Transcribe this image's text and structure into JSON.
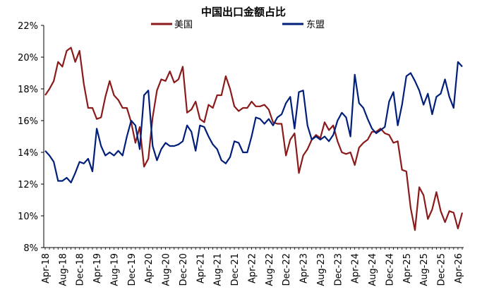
{
  "chart_data": {
    "type": "line",
    "title": "中国出口金额占比",
    "xlabel": "",
    "ylabel": "",
    "ylim": [
      8,
      22
    ],
    "yticks": [
      "8%",
      "10%",
      "12%",
      "14%",
      "16%",
      "18%",
      "20%",
      "22%"
    ],
    "ytick_values": [
      8,
      10,
      12,
      14,
      16,
      18,
      20,
      22
    ],
    "start": "Apr-18",
    "xticks": [
      "Apr-18",
      "Aug-18",
      "Dec-18",
      "Apr-19",
      "Aug-19",
      "Dec-19",
      "Apr-20",
      "Aug-20",
      "Dec-20",
      "Apr-21",
      "Aug-21",
      "Dec-21",
      "Apr-22",
      "Aug-22",
      "Dec-22",
      "Apr-23",
      "Aug-23",
      "Dec-23",
      "Apr-24",
      "Aug-24",
      "Dec-24",
      "Apr-25",
      "Aug-25",
      "Dec-25",
      "Apr-26"
    ],
    "grid": false,
    "legend_position": "top",
    "series": [
      {
        "name": "美国",
        "color": "#8b1a1a",
        "values": [
          17.6,
          18.0,
          18.5,
          19.7,
          19.4,
          20.4,
          20.6,
          19.7,
          20.4,
          18.3,
          16.8,
          16.8,
          16.1,
          16.2,
          17.5,
          18.5,
          17.6,
          17.3,
          16.8,
          16.8,
          15.9,
          14.6,
          15.6,
          13.1,
          13.6,
          16.2,
          17.9,
          18.6,
          18.5,
          19.1,
          18.4,
          18.6,
          19.4,
          16.5,
          16.7,
          17.2,
          16.1,
          15.9,
          17.0,
          16.8,
          17.6,
          17.6,
          18.8,
          18.0,
          16.9,
          16.6,
          16.8,
          16.8,
          17.2,
          16.9,
          16.9,
          17.0,
          16.7,
          15.9,
          15.8,
          15.8,
          13.8,
          14.8,
          15.2,
          12.7,
          13.8,
          14.2,
          14.8,
          15.1,
          14.9,
          15.9,
          15.4,
          15.7,
          14.7,
          14.0,
          13.9,
          14.0,
          13.2,
          14.3,
          14.6,
          14.8,
          15.3,
          15.3,
          15.5,
          15.2,
          15.1,
          14.6,
          14.7,
          12.9,
          12.8,
          10.5,
          9.1,
          11.8,
          11.3,
          9.8,
          10.4,
          11.5,
          10.3,
          9.6,
          10.3,
          10.2,
          9.2,
          10.2
        ]
      },
      {
        "name": "东盟",
        "color": "#001f7a",
        "values": [
          14.1,
          13.8,
          13.4,
          12.2,
          12.2,
          12.4,
          12.1,
          12.7,
          13.4,
          13.3,
          13.6,
          12.8,
          15.5,
          14.4,
          13.8,
          14.0,
          13.8,
          14.1,
          13.8,
          15.0,
          16.0,
          15.7,
          14.2,
          17.6,
          17.9,
          14.4,
          13.5,
          14.2,
          14.6,
          14.4,
          14.4,
          14.5,
          14.7,
          15.7,
          15.3,
          14.1,
          15.7,
          15.6,
          15.0,
          14.5,
          14.2,
          13.5,
          13.3,
          13.7,
          14.7,
          14.6,
          14.0,
          14.0,
          15.0,
          16.2,
          16.1,
          15.8,
          16.1,
          15.7,
          16.2,
          16.4,
          17.1,
          17.5,
          15.5,
          17.8,
          17.9,
          15.7,
          14.8,
          15.0,
          14.8,
          15.0,
          14.7,
          15.1,
          16.0,
          16.5,
          16.2,
          15.0,
          18.9,
          17.1,
          16.8,
          16.1,
          15.5,
          15.2,
          15.4,
          15.6,
          17.2,
          17.8,
          15.7,
          17.0,
          18.8,
          19.0,
          18.5,
          17.9,
          17.0,
          17.7,
          16.4,
          17.5,
          17.7,
          18.6,
          17.5,
          16.8,
          19.7,
          19.4
        ]
      }
    ]
  }
}
